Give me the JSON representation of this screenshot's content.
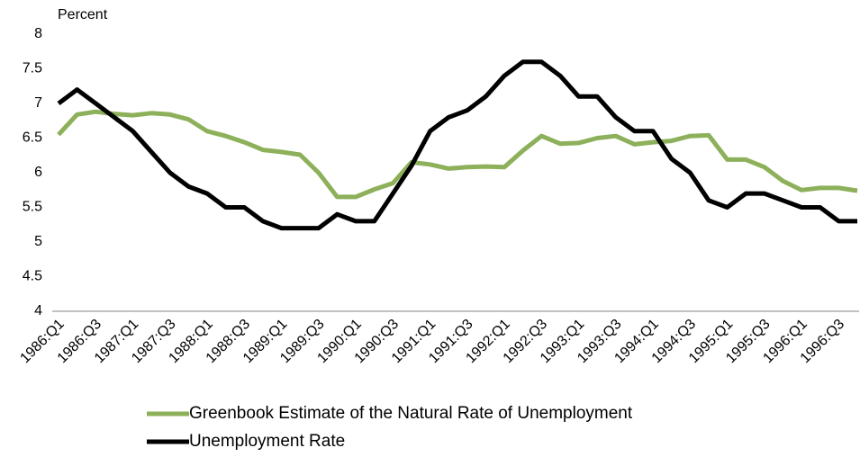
{
  "chart_data": {
    "type": "line",
    "y_axis_label": "Percent",
    "categories": [
      "1986:Q1",
      null,
      "1986:Q3",
      null,
      "1987:Q1",
      null,
      "1987:Q3",
      null,
      "1988:Q1",
      null,
      "1988:Q3",
      null,
      "1989:Q1",
      null,
      "1989:Q3",
      null,
      "1990:Q1",
      null,
      "1990:Q3",
      null,
      "1991:Q1",
      null,
      "1991:Q3",
      null,
      "1992:Q1",
      null,
      "1992:Q3",
      null,
      "1993:Q1",
      null,
      "1993:Q3",
      null,
      "1994:Q1",
      null,
      "1994:Q3",
      null,
      "1995:Q1",
      null,
      "1995:Q3",
      null,
      "1996:Q1",
      null,
      "1996:Q3",
      null
    ],
    "series": [
      {
        "name": "Greenbook Estimate of the Natural Rate of Unemployment",
        "color": "#8db05a",
        "values": [
          6.55,
          6.84,
          6.88,
          6.85,
          6.83,
          6.86,
          6.84,
          6.77,
          6.6,
          6.53,
          6.44,
          6.33,
          6.3,
          6.26,
          6.0,
          5.65,
          5.65,
          5.76,
          5.85,
          6.15,
          6.12,
          6.06,
          6.08,
          6.09,
          6.08,
          6.32,
          6.53,
          6.42,
          6.43,
          6.5,
          6.53,
          6.41,
          6.44,
          6.46,
          6.53,
          6.54,
          6.19,
          6.19,
          6.08,
          5.88,
          5.75,
          5.78,
          5.78,
          5.74
        ]
      },
      {
        "name": "Unemployment Rate",
        "color": "#000000",
        "values": [
          7.0,
          7.2,
          7.0,
          6.8,
          6.6,
          6.3,
          6.0,
          5.8,
          5.7,
          5.5,
          5.5,
          5.3,
          5.2,
          5.2,
          5.2,
          5.4,
          5.3,
          5.3,
          5.7,
          6.1,
          6.6,
          6.8,
          6.9,
          7.1,
          7.4,
          7.6,
          7.6,
          7.4,
          7.1,
          7.1,
          6.8,
          6.6,
          6.6,
          6.2,
          6.0,
          5.6,
          5.5,
          5.7,
          5.7,
          5.6,
          5.5,
          5.5,
          5.3,
          5.3
        ]
      }
    ],
    "ylim": [
      4,
      8
    ],
    "yticks": [
      4,
      4.5,
      5,
      5.5,
      6,
      6.5,
      7,
      7.5,
      8
    ],
    "grid": false
  }
}
